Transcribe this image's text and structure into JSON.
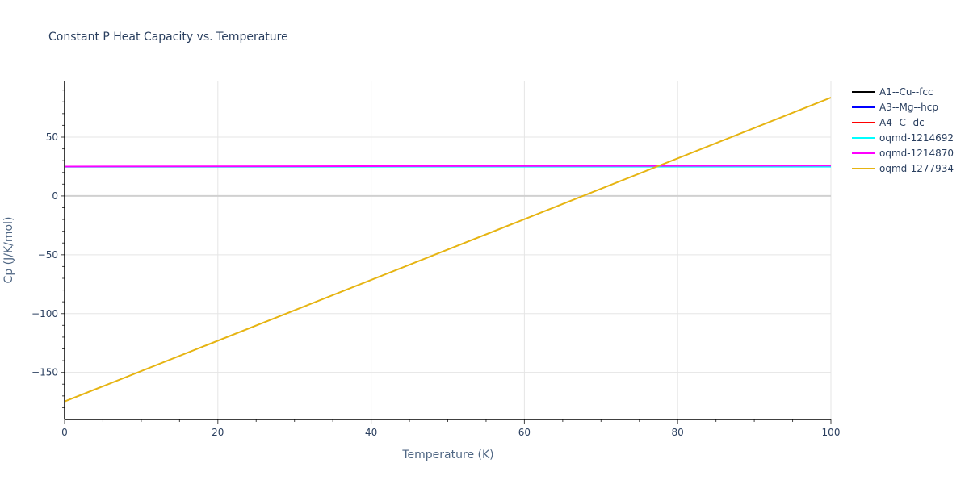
{
  "chart_data": {
    "type": "line",
    "title": "Constant P Heat Capacity vs. Temperature",
    "xlabel": "Temperature (K)",
    "ylabel": "Cp (J/K/mol)",
    "xlim": [
      0,
      100
    ],
    "ylim": [
      -190,
      98
    ],
    "x_ticks": [
      0,
      20,
      40,
      60,
      80,
      100
    ],
    "y_ticks": [
      -150,
      -100,
      -50,
      0,
      50
    ],
    "grid": true,
    "legend_position": "right",
    "series": [
      {
        "name": "A1--Cu--fcc",
        "color": "#000000",
        "x": [],
        "y": []
      },
      {
        "name": "A3--Mg--hcp",
        "color": "#0000ff",
        "x": [],
        "y": []
      },
      {
        "name": "A4--C--dc",
        "color": "#ff0000",
        "x": [],
        "y": []
      },
      {
        "name": "oqmd-1214692",
        "color": "#00ffff",
        "x": [
          0,
          100
        ],
        "y": [
          24.8,
          24.9
        ]
      },
      {
        "name": "oqmd-1214870",
        "color": "#ff00ff",
        "x": [
          0,
          100
        ],
        "y": [
          25.0,
          25.8
        ]
      },
      {
        "name": "oqmd-1277934",
        "color": "#e6b412",
        "x": [
          0,
          100
        ],
        "y": [
          -174.7,
          83.6
        ]
      }
    ]
  }
}
